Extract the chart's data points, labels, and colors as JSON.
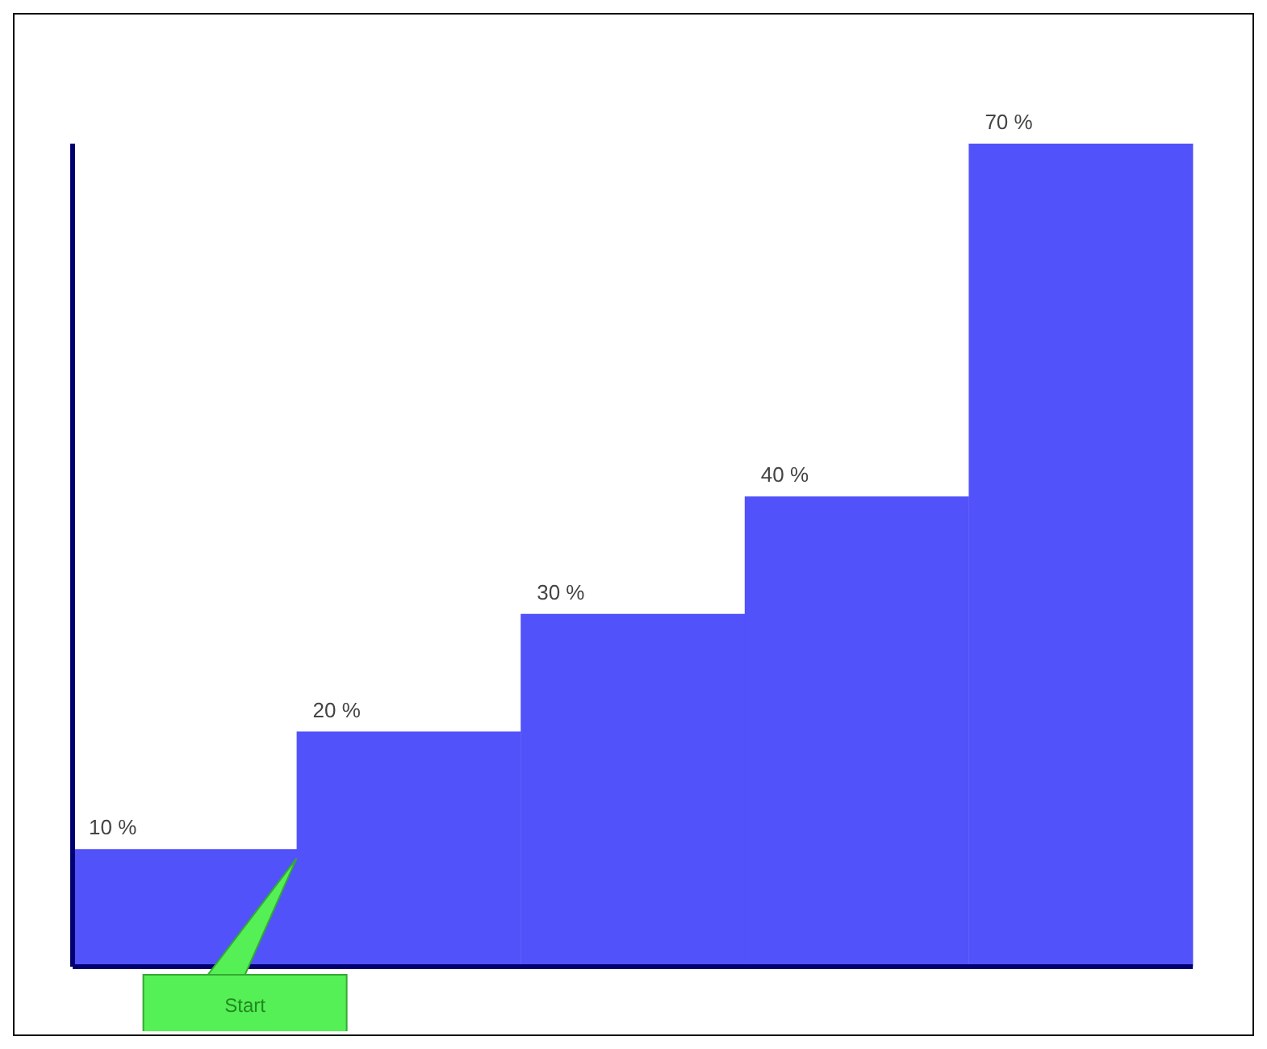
{
  "chart_data": {
    "type": "bar",
    "categories": [
      null,
      null,
      null,
      null,
      null
    ],
    "values": [
      10,
      20,
      30,
      40,
      70
    ],
    "value_labels": [
      "10 %",
      "20 %",
      "30 %",
      "40 %",
      "70 %"
    ],
    "color": "#5252fa",
    "annotations": [
      "Start"
    ]
  }
}
